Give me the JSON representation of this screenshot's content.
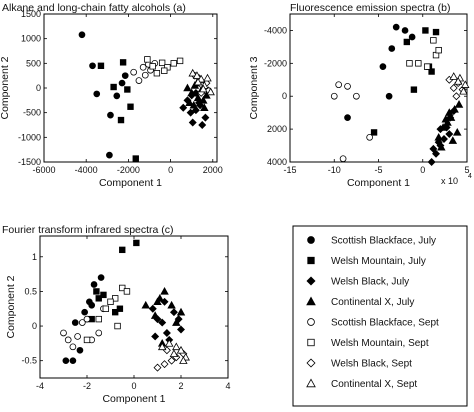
{
  "legend": [
    {
      "name": "Scottish Blackface, July",
      "marker": "circle",
      "filled": true
    },
    {
      "name": "Welsh Mountain, July",
      "marker": "square",
      "filled": true
    },
    {
      "name": "Welsh Black, July",
      "marker": "diamond",
      "filled": true
    },
    {
      "name": "Continental X, July",
      "marker": "triangle",
      "filled": true
    },
    {
      "name": "Scottish Blackface, Sept",
      "marker": "circle",
      "filled": false
    },
    {
      "name": "Welsh Mountain, Sept",
      "marker": "square",
      "filled": false
    },
    {
      "name": "Welsh Black, Sept",
      "marker": "diamond",
      "filled": false
    },
    {
      "name": "Continental X, Sept",
      "marker": "triangle",
      "filled": false
    }
  ],
  "chart_data": [
    {
      "type": "scatter",
      "title": "Alkane and long-chain fatty alcohols (a)",
      "xlabel": "Component  1",
      "ylabel": "Component  2",
      "xlim": [
        -6000,
        2200
      ],
      "ylim": [
        -1500,
        1500
      ],
      "y_inverted": false,
      "xticks": [
        -6000,
        -4000,
        -2000,
        0,
        2000
      ],
      "xtick_labels": [
        "-6000",
        "-4000",
        "-2000",
        "0",
        "2000"
      ],
      "yticks": [
        -1500,
        -1000,
        -500,
        0,
        500,
        1000,
        1500
      ],
      "ytick_labels": [
        "-1500",
        "-1000",
        "-500",
        "0",
        "500",
        "1000",
        "1500"
      ],
      "xexp": "",
      "series": [
        {
          "x": [
            -4200,
            -3700,
            -3500,
            -2850,
            -2550,
            -2300,
            -2900,
            -2150
          ],
          "y": [
            1080,
            450,
            -120,
            -550,
            -160,
            100,
            -1360,
            250
          ]
        },
        {
          "x": [
            -3300,
            -2700,
            -2350,
            -1900,
            -2050,
            -2250,
            -1650
          ],
          "y": [
            450,
            20,
            -650,
            -380,
            -30,
            520,
            -1430
          ]
        },
        {
          "x": [
            600,
            800,
            950,
            1050,
            1200,
            1350,
            1500,
            1650,
            1200,
            1000,
            1400
          ],
          "y": [
            -400,
            -250,
            -500,
            -700,
            -450,
            -300,
            -750,
            -600,
            -100,
            -150,
            -350
          ]
        },
        {
          "x": [
            800,
            1000,
            1150,
            1300,
            1450,
            1550,
            1700,
            1250,
            900,
            1600,
            1100
          ],
          "y": [
            0,
            -100,
            50,
            -200,
            -50,
            -250,
            -150,
            100,
            -300,
            -400,
            -350
          ]
        },
        {
          "x": [
            -1750,
            -1500,
            -1300,
            -1200,
            -1050,
            -750,
            -950
          ],
          "y": [
            320,
            150,
            420,
            260,
            480,
            500,
            360
          ]
        },
        {
          "x": [
            -1100,
            -850,
            -650,
            -400,
            -150,
            150,
            450,
            -300
          ],
          "y": [
            580,
            440,
            300,
            510,
            420,
            500,
            550,
            350
          ]
        },
        {
          "x": [
            1150,
            1350,
            1500,
            1700,
            1800,
            1450
          ],
          "y": [
            250,
            200,
            50,
            100,
            -50,
            -100
          ]
        },
        {
          "x": [
            1050,
            1250,
            1450,
            1600,
            1750,
            1300,
            1900,
            1550
          ],
          "y": [
            300,
            250,
            180,
            50,
            200,
            120,
            -80,
            -20
          ]
        }
      ]
    },
    {
      "type": "scatter",
      "title": "Fluorescence emission spectra (b)",
      "xlabel": "Component  1",
      "ylabel": "Component  3",
      "xlim": [
        -15,
        5
      ],
      "ylim": [
        4000,
        -5000
      ],
      "y_inverted": true,
      "xticks": [
        -15,
        -10,
        -5,
        0,
        5
      ],
      "xtick_labels": [
        "-15",
        "-10",
        "-5",
        "0",
        "5"
      ],
      "yticks": [
        -4000,
        -2000,
        0,
        2000,
        4000
      ],
      "ytick_labels": [
        "-4000",
        "-2000",
        "0",
        "2000",
        "4000"
      ],
      "xexp": "x 10",
      "xexp_power": "4",
      "series": [
        {
          "x": [
            -8.5,
            -4.5,
            -3.5,
            -3.0,
            -2.0,
            -1.2,
            -3.8
          ],
          "y": [
            1300,
            -1800,
            -2900,
            -4200,
            -4000,
            -3600,
            0
          ]
        },
        {
          "x": [
            -5.5,
            -1.8,
            0.7,
            1.0,
            1.5,
            -1.0,
            0.3
          ],
          "y": [
            2200,
            -3300,
            -1800,
            -1500,
            -3900,
            -400,
            -4000
          ]
        },
        {
          "x": [
            1.0,
            1.5,
            2.0,
            2.4,
            2.7,
            3.1,
            3.5,
            2.0,
            3.0,
            1.8,
            1.2
          ],
          "y": [
            4000,
            3500,
            3000,
            2600,
            1900,
            1300,
            900,
            2000,
            2300,
            2800,
            3200
          ]
        },
        {
          "x": [
            1.8,
            2.3,
            2.8,
            3.2,
            3.6,
            4.1,
            3.0,
            2.6,
            3.9,
            2.1,
            3.4
          ],
          "y": [
            2500,
            1900,
            1600,
            1300,
            800,
            500,
            1000,
            1400,
            2200,
            3100,
            2700
          ]
        },
        {
          "x": [
            -10.0,
            -9.5,
            -8.5,
            -7.5,
            -6.0,
            -9.0
          ],
          "y": [
            0,
            -700,
            -600,
            0,
            2500,
            3800
          ]
        },
        {
          "x": [
            -1.5,
            -0.5,
            0.5,
            1.5,
            1.8,
            1.2
          ],
          "y": [
            -2000,
            -2000,
            -1800,
            -2500,
            -2800,
            -3400
          ]
        },
        {
          "x": [
            3.0,
            3.5,
            4.0,
            4.5,
            3.8
          ],
          "y": [
            -1000,
            -500,
            -800,
            -400,
            0
          ]
        },
        {
          "x": [
            3.5,
            4.2,
            4.8,
            4.0,
            4.6
          ],
          "y": [
            -1200,
            -1100,
            -700,
            -900,
            -300
          ]
        }
      ]
    },
    {
      "type": "scatter",
      "title": "Fourier transform infrared spectra (c)",
      "xlabel": "Component  1",
      "ylabel": "Component  2",
      "xlim": [
        -4,
        4
      ],
      "ylim": [
        -0.75,
        1.3
      ],
      "y_inverted": false,
      "xticks": [
        -4,
        -2,
        0,
        2,
        4
      ],
      "xtick_labels": [
        "-4",
        "-2",
        "0",
        "2",
        "4"
      ],
      "yticks": [
        -0.5,
        0,
        0.5,
        1
      ],
      "ytick_labels": [
        "-0.5",
        "0",
        "0.5",
        "1"
      ],
      "xexp": "",
      "series": [
        {
          "x": [
            -2.9,
            -2.6,
            -2.3,
            -2.1,
            -1.9,
            -1.7,
            -1.4,
            -2.5,
            -1.8
          ],
          "y": [
            -0.5,
            -0.5,
            -0.35,
            0.2,
            0.35,
            0.6,
            0.7,
            0.05,
            0.3
          ]
        },
        {
          "x": [
            -1.8,
            -1.5,
            -1.3,
            -0.8,
            -0.5,
            0.1,
            -0.6,
            -1.6
          ],
          "y": [
            0.1,
            0.4,
            0.45,
            0.2,
            1.1,
            1.2,
            0.25,
            0.5
          ]
        },
        {
          "x": [
            0.8,
            1.0,
            1.2,
            1.4,
            1.5,
            1.7,
            1.9,
            2.0,
            1.3,
            0.9
          ],
          "y": [
            0.25,
            0.1,
            0.05,
            -0.1,
            -0.2,
            0.2,
            0.1,
            -0.05,
            0.35,
            -0.15
          ]
        },
        {
          "x": [
            0.5,
            0.9,
            1.1,
            1.3,
            1.6,
            1.8,
            2.0,
            1.0,
            1.2
          ],
          "y": [
            0.3,
            0.15,
            0.4,
            0.5,
            0.3,
            0.05,
            0.2,
            0.35,
            -0.25
          ]
        },
        {
          "x": [
            -3.0,
            -2.8,
            -2.6,
            -2.4,
            -2.2,
            -1.8,
            -1.5,
            -1.3,
            -2.0
          ],
          "y": [
            -0.1,
            -0.2,
            -0.3,
            -0.15,
            0.05,
            -0.2,
            -0.1,
            0.25,
            0.1
          ]
        },
        {
          "x": [
            -2.0,
            -1.5,
            -1.2,
            -0.8,
            -0.5,
            -1.0,
            -0.3,
            -0.7
          ],
          "y": [
            -0.2,
            0.1,
            0.25,
            0.4,
            0.55,
            0.35,
            0.5,
            0.0
          ]
        },
        {
          "x": [
            1.0,
            1.3,
            1.6,
            1.8,
            2.1,
            1.4
          ],
          "y": [
            -0.6,
            -0.55,
            -0.5,
            -0.45,
            -0.4,
            -0.35
          ]
        },
        {
          "x": [
            1.2,
            1.5,
            1.8,
            2.0,
            2.2,
            1.7,
            2.1
          ],
          "y": [
            -0.3,
            -0.25,
            -0.3,
            -0.35,
            -0.45,
            -0.4,
            -0.5
          ]
        }
      ]
    }
  ]
}
